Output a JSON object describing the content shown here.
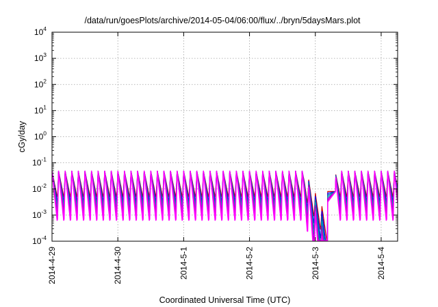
{
  "chart_data": {
    "type": "line",
    "title": "/data/run/goesPlots/archive/2014-05-04/06:00/flux/../bryn/5daysMars.plot",
    "xlabel": "Coordinated Universal Time (UTC)",
    "ylabel": "cGy/day",
    "yscale": "log",
    "ylim": [
      0.0001,
      10000
    ],
    "xlim": [
      "2014-04-29 00:00",
      "2014-05-04 06:00"
    ],
    "x_ticks": [
      "2014-4-29",
      "2014-4-30",
      "2014-5-1",
      "2014-5-2",
      "2014-5-3",
      "2014-5-4"
    ],
    "y_ticks": [
      {
        "base": "10",
        "exp": "-4",
        "value": 0.0001
      },
      {
        "base": "10",
        "exp": "-3",
        "value": 0.001
      },
      {
        "base": "10",
        "exp": "-2",
        "value": 0.01
      },
      {
        "base": "10",
        "exp": "-1",
        "value": 0.1
      },
      {
        "base": "10",
        "exp": "0",
        "value": 1
      },
      {
        "base": "10",
        "exp": "1",
        "value": 10
      },
      {
        "base": "10",
        "exp": "2",
        "value": 100
      },
      {
        "base": "10",
        "exp": "3",
        "value": 1000
      },
      {
        "base": "10",
        "exp": "4",
        "value": 10000
      }
    ],
    "grid": true,
    "legend": "none",
    "sawtooth": {
      "cycles_per_day": 10.0,
      "peak_value": 0.048,
      "trough_values": [
        0.0045,
        0.003,
        0.0022,
        0.0017,
        0.0012,
        0.0008,
        0.0005
      ],
      "dip_start": "2014-05-02 20:00",
      "dip_min_value": 0.0001,
      "recovery_time": "2014-05-03 04:30",
      "recovery_value": 0.008
    },
    "series": [
      {
        "color": "#cc0000"
      },
      {
        "color": "#0000ff"
      },
      {
        "color": "#0066aa"
      },
      {
        "color": "#00aaaa"
      },
      {
        "color": "#9900cc"
      },
      {
        "color": "#cc00cc"
      },
      {
        "color": "#ff00ff"
      }
    ]
  }
}
